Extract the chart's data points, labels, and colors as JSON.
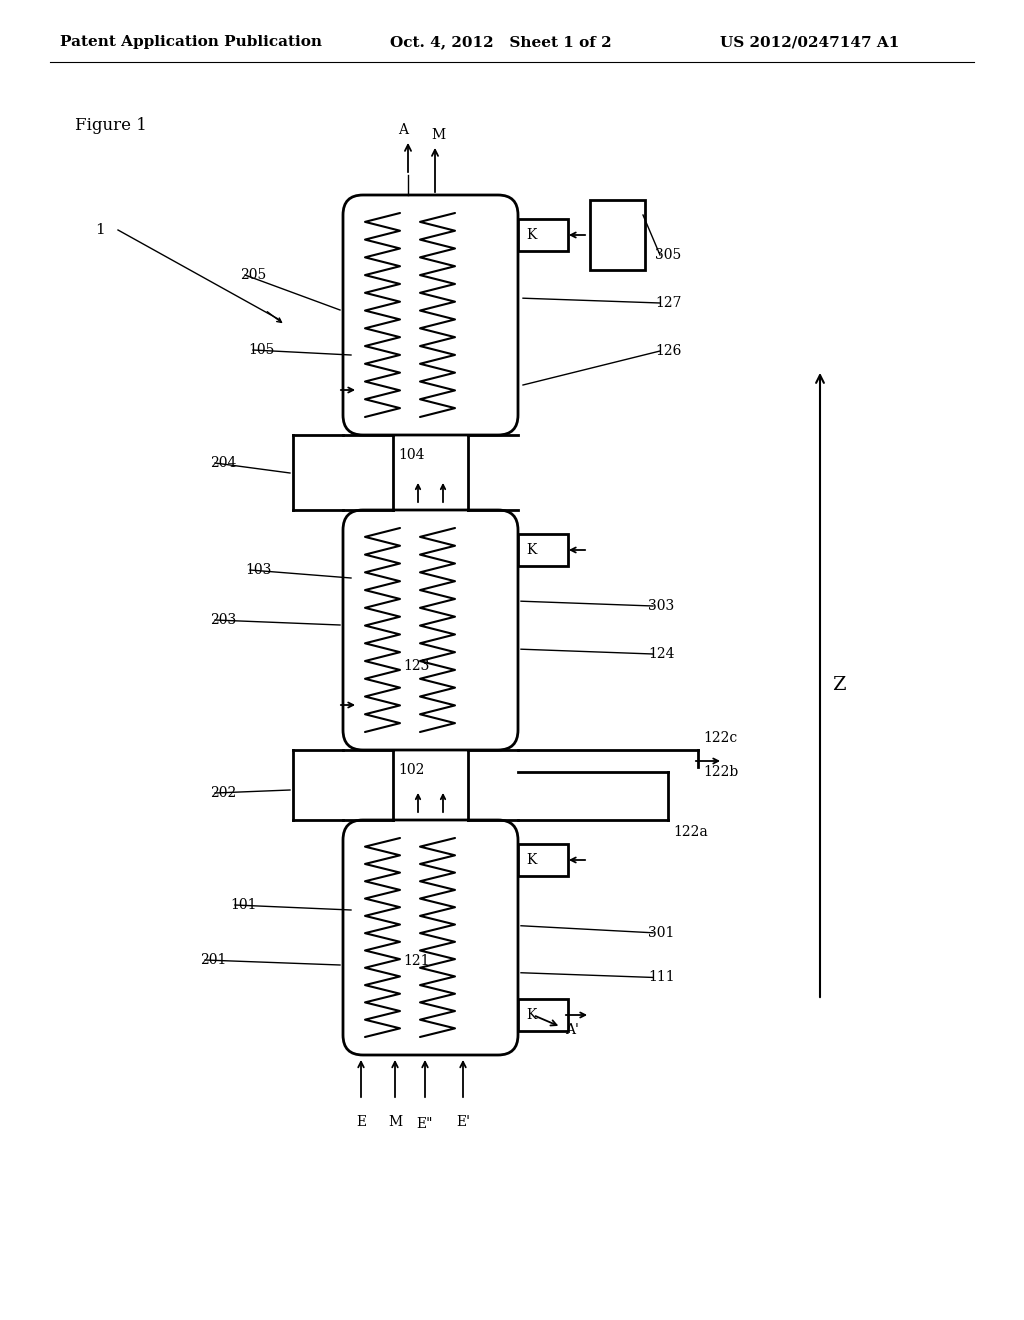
{
  "bg_color": "#ffffff",
  "line_color": "#000000",
  "header_left": "Patent Application Publication",
  "header_mid": "Oct. 4, 2012   Sheet 1 of 2",
  "header_right": "US 2012/0247147 A1",
  "figure_label": "Figure 1"
}
